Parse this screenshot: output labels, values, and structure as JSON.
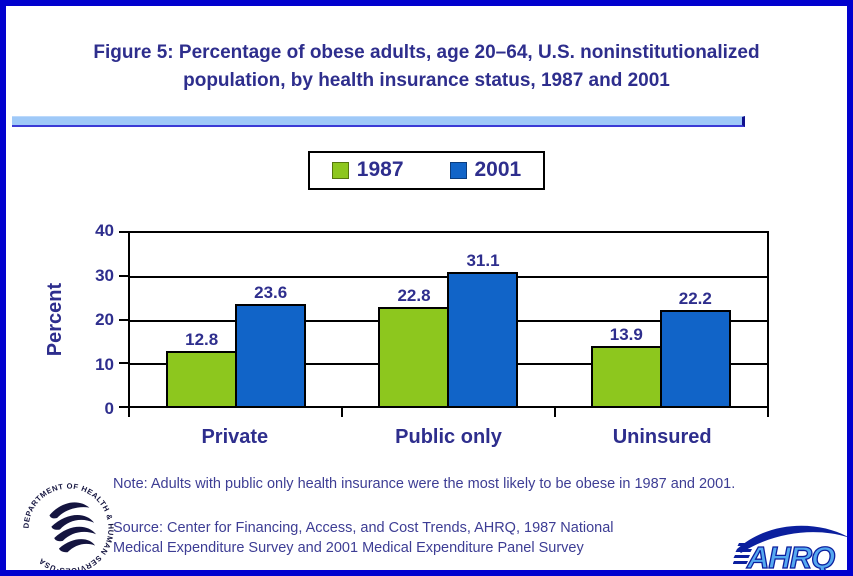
{
  "figure": {
    "title_line1": "Figure 5: Percentage of obese adults, age 20–64, U.S. noninstitutionalized",
    "title_line2": "population, by health insurance status, 1987 and 2001",
    "note": "Note: Adults with public only health insurance were the most likely to be obese in 1987 and 2001.",
    "source_line1": "Source: Center for Financing, Access, and Cost Trends, AHRQ, 1987 National",
    "source_line2": "Medical Expenditure Survey and 2001 Medical Expenditure Panel Survey"
  },
  "legend": {
    "items": [
      {
        "label": "1987",
        "color": "#8dc71e"
      },
      {
        "label": "2001",
        "color": "#1164c8"
      }
    ]
  },
  "chart_data": {
    "type": "bar",
    "title": "",
    "categories": [
      "Private",
      "Public only",
      "Uninsured"
    ],
    "series": [
      {
        "name": "1987",
        "color": "#8dc71e",
        "values": [
          12.8,
          22.8,
          13.9
        ]
      },
      {
        "name": "2001",
        "color": "#1164c8",
        "values": [
          23.6,
          31.1,
          22.2
        ]
      }
    ],
    "xlabel": "",
    "ylabel": "Percent",
    "ylim": [
      0,
      40
    ],
    "yticks": [
      0,
      10,
      20,
      30,
      40
    ],
    "grid": true,
    "legend_position": "top",
    "data_labels": true
  },
  "colors": {
    "page_border_blue": "#0101ce",
    "navy_text": "#2e2e8d",
    "note_text": "#3d3d94",
    "divider_light_blue": "#9fc9f8",
    "series_1987_green": "#8dc71e",
    "series_2001_blue": "#1164c8"
  },
  "logos": {
    "hhs_ring_text": "DEPARTMENT OF HEALTH & HUMAN SERVICES·USA",
    "ahrq_text": "AHRQ"
  }
}
